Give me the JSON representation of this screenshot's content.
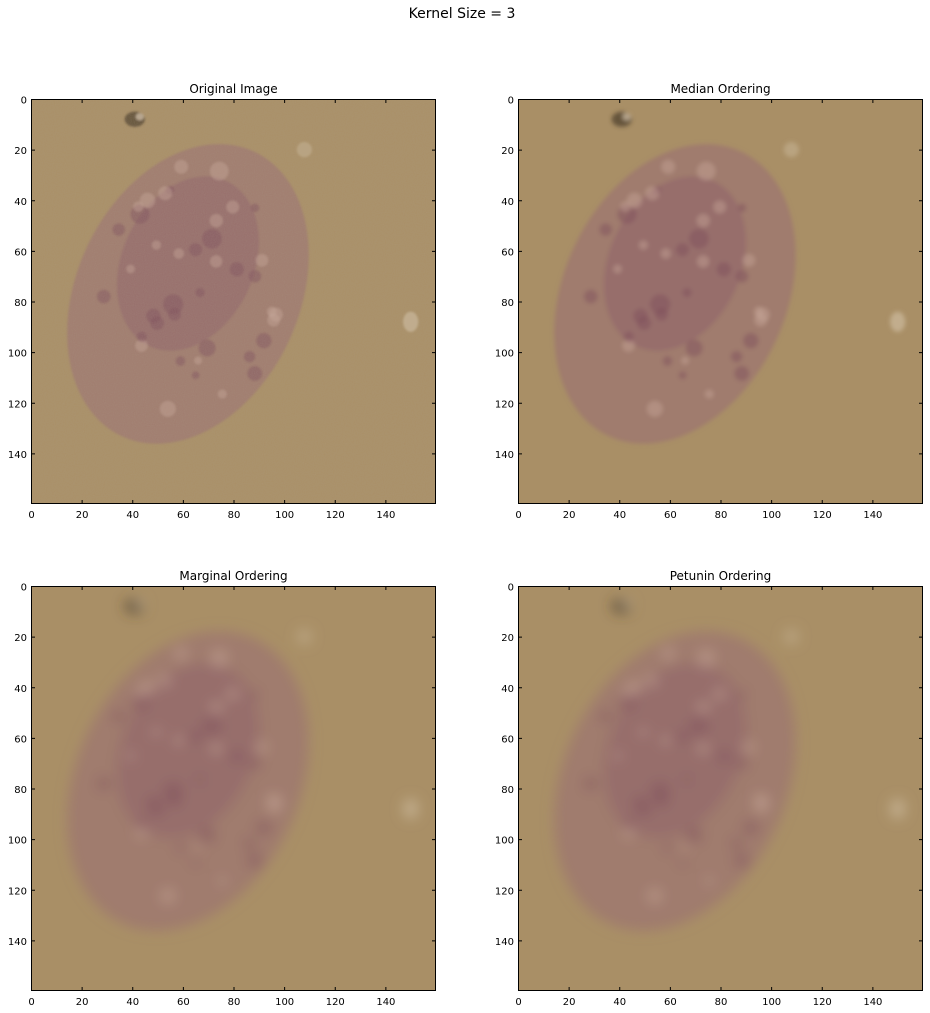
{
  "figure": {
    "suptitle": "Kernel Size = 3"
  },
  "chart_data": [
    {
      "type": "heatmap",
      "title": "Original Image",
      "xlim": [
        0,
        160
      ],
      "ylim": [
        160,
        0
      ],
      "x_ticks": [
        0,
        20,
        40,
        60,
        80,
        100,
        120,
        140
      ],
      "y_ticks": [
        0,
        20,
        40,
        60,
        80,
        100,
        120,
        140
      ],
      "grid": false,
      "variant": "noisy"
    },
    {
      "type": "heatmap",
      "title": "Median Ordering",
      "xlim": [
        0,
        160
      ],
      "ylim": [
        160,
        0
      ],
      "x_ticks": [
        0,
        20,
        40,
        60,
        80,
        100,
        120,
        140
      ],
      "y_ticks": [
        0,
        20,
        40,
        60,
        80,
        100,
        120,
        140
      ],
      "grid": false,
      "variant": "slight-blur"
    },
    {
      "type": "heatmap",
      "title": "Marginal Ordering",
      "xlim": [
        0,
        160
      ],
      "ylim": [
        160,
        0
      ],
      "x_ticks": [
        0,
        20,
        40,
        60,
        80,
        100,
        120,
        140
      ],
      "y_ticks": [
        0,
        20,
        40,
        60,
        80,
        100,
        120,
        140
      ],
      "grid": false,
      "variant": "strong-blur"
    },
    {
      "type": "heatmap",
      "title": "Petunin Ordering",
      "xlim": [
        0,
        160
      ],
      "ylim": [
        160,
        0
      ],
      "x_ticks": [
        0,
        20,
        40,
        60,
        80,
        100,
        120,
        140
      ],
      "y_ticks": [
        0,
        20,
        40,
        60,
        80,
        100,
        120,
        140
      ],
      "grid": false,
      "variant": "strong-blur"
    }
  ],
  "colors": {
    "background": "#a98f66",
    "cell": "#9c7670",
    "cell_dark": "#8f5e68",
    "particle": "#4a3a2a"
  }
}
